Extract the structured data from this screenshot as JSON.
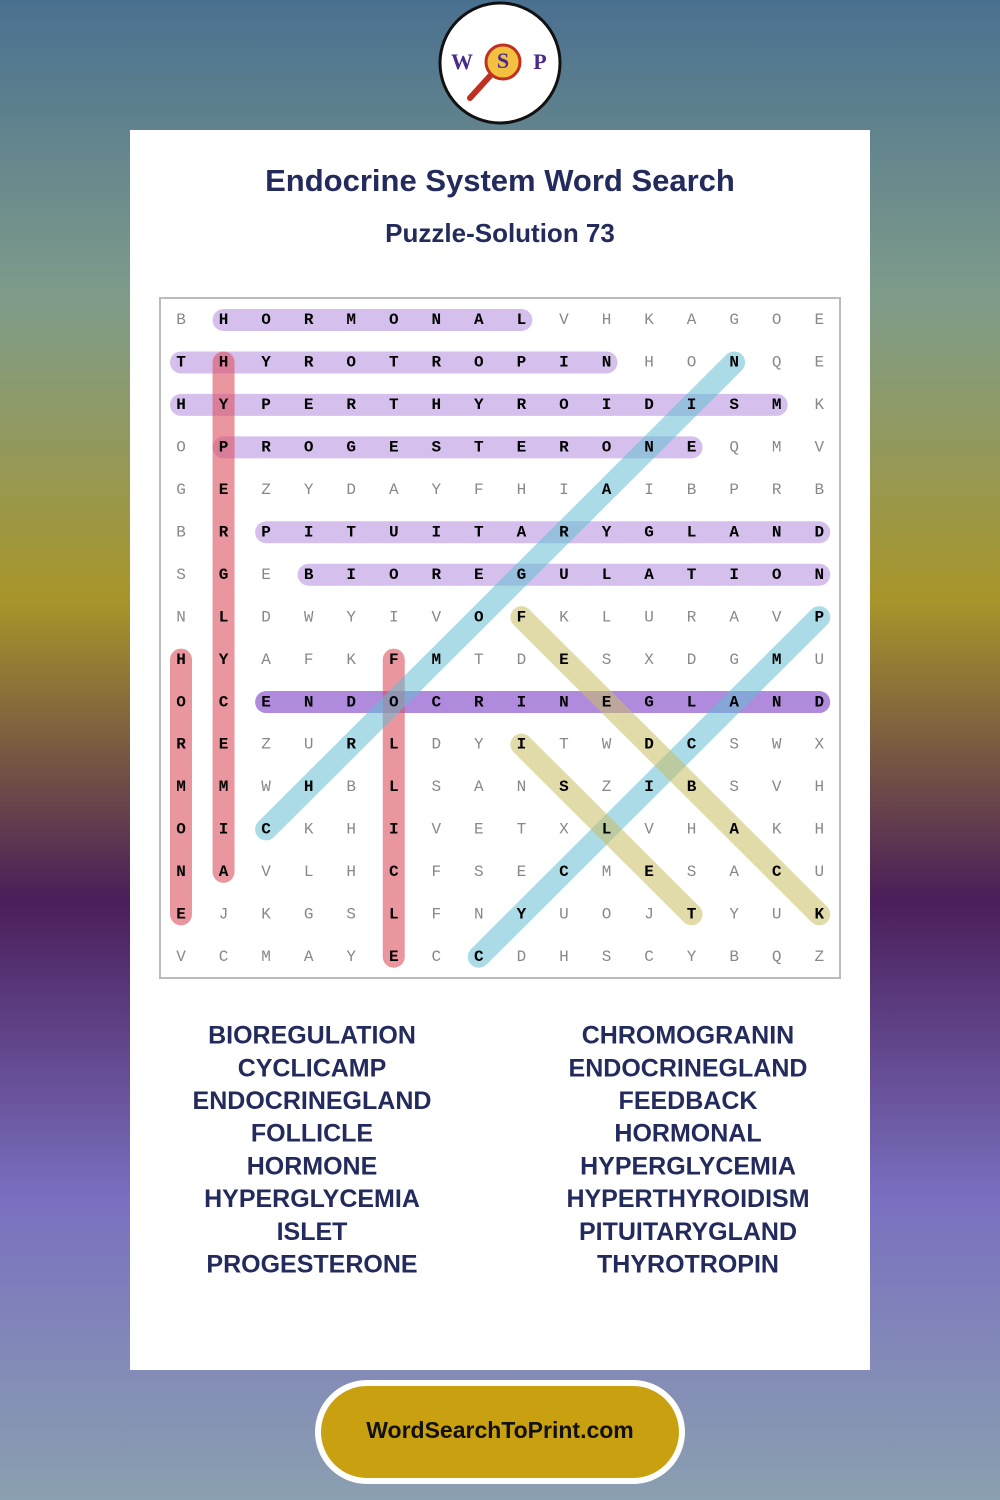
{
  "header": {
    "logo": [
      "W",
      "S",
      "P"
    ],
    "title": "Endocrine System Word Search",
    "subtitle": "Puzzle-Solution 73"
  },
  "grid": {
    "rows": [
      [
        "B",
        "H",
        "O",
        "R",
        "M",
        "O",
        "N",
        "A",
        "L",
        "V",
        "H",
        "K",
        "A",
        "G",
        "O",
        "E"
      ],
      [
        "T",
        "H",
        "Y",
        "R",
        "O",
        "T",
        "R",
        "O",
        "P",
        "I",
        "N",
        "H",
        "O",
        "N",
        "Q",
        "E"
      ],
      [
        "H",
        "Y",
        "P",
        "E",
        "R",
        "T",
        "H",
        "Y",
        "R",
        "O",
        "I",
        "D",
        "I",
        "S",
        "M",
        "K"
      ],
      [
        "O",
        "P",
        "R",
        "O",
        "G",
        "E",
        "S",
        "T",
        "E",
        "R",
        "O",
        "N",
        "E",
        "Q",
        "M",
        "V"
      ],
      [
        "G",
        "E",
        "Z",
        "Y",
        "D",
        "A",
        "Y",
        "F",
        "H",
        "I",
        "A",
        "I",
        "B",
        "P",
        "R",
        "B"
      ],
      [
        "B",
        "R",
        "P",
        "I",
        "T",
        "U",
        "I",
        "T",
        "A",
        "R",
        "Y",
        "G",
        "L",
        "A",
        "N",
        "D"
      ],
      [
        "S",
        "G",
        "E",
        "B",
        "I",
        "O",
        "R",
        "E",
        "G",
        "U",
        "L",
        "A",
        "T",
        "I",
        "O",
        "N"
      ],
      [
        "N",
        "L",
        "D",
        "W",
        "Y",
        "I",
        "V",
        "O",
        "F",
        "K",
        "L",
        "U",
        "R",
        "A",
        "V",
        "P"
      ],
      [
        "H",
        "Y",
        "A",
        "F",
        "K",
        "F",
        "M",
        "T",
        "D",
        "E",
        "S",
        "X",
        "D",
        "G",
        "M",
        "U"
      ],
      [
        "O",
        "C",
        "E",
        "N",
        "D",
        "O",
        "C",
        "R",
        "I",
        "N",
        "E",
        "G",
        "L",
        "A",
        "N",
        "D"
      ],
      [
        "R",
        "E",
        "Z",
        "U",
        "R",
        "L",
        "D",
        "Y",
        "I",
        "T",
        "W",
        "D",
        "C",
        "S",
        "W",
        "X"
      ],
      [
        "M",
        "M",
        "W",
        "H",
        "B",
        "L",
        "S",
        "A",
        "N",
        "S",
        "Z",
        "I",
        "B",
        "S",
        "V",
        "H"
      ],
      [
        "O",
        "I",
        "C",
        "K",
        "H",
        "I",
        "V",
        "E",
        "T",
        "X",
        "L",
        "V",
        "H",
        "A",
        "K",
        "H"
      ],
      [
        "N",
        "A",
        "V",
        "L",
        "H",
        "C",
        "F",
        "S",
        "E",
        "C",
        "M",
        "E",
        "S",
        "A",
        "C",
        "U"
      ],
      [
        "E",
        "J",
        "K",
        "G",
        "S",
        "L",
        "F",
        "N",
        "Y",
        "U",
        "O",
        "J",
        "T",
        "Y",
        "U",
        "K"
      ],
      [
        "V",
        "C",
        "M",
        "A",
        "Y",
        "E",
        "C",
        "C",
        "D",
        "H",
        "S",
        "C",
        "Y",
        "B",
        "Q",
        "Z"
      ]
    ]
  },
  "word_list": {
    "left": [
      "BIOREGULATION",
      "CYCLICAMP",
      "ENDOCRINEGLAND",
      "FOLLICLE",
      "HORMONE",
      "HYPERGLYCEMIA",
      "ISLET",
      "PROGESTERONE"
    ],
    "right": [
      "CHROMOGRANIN",
      "ENDOCRINEGLAND",
      "FEEDBACK",
      "HORMONAL",
      "HYPERGLYCEMIA",
      "HYPERTHYROIDISM",
      "PITUITARYGLAND",
      "THYROTROPIN"
    ]
  },
  "footer": {
    "site": "WordSearchToPrint.com"
  }
}
